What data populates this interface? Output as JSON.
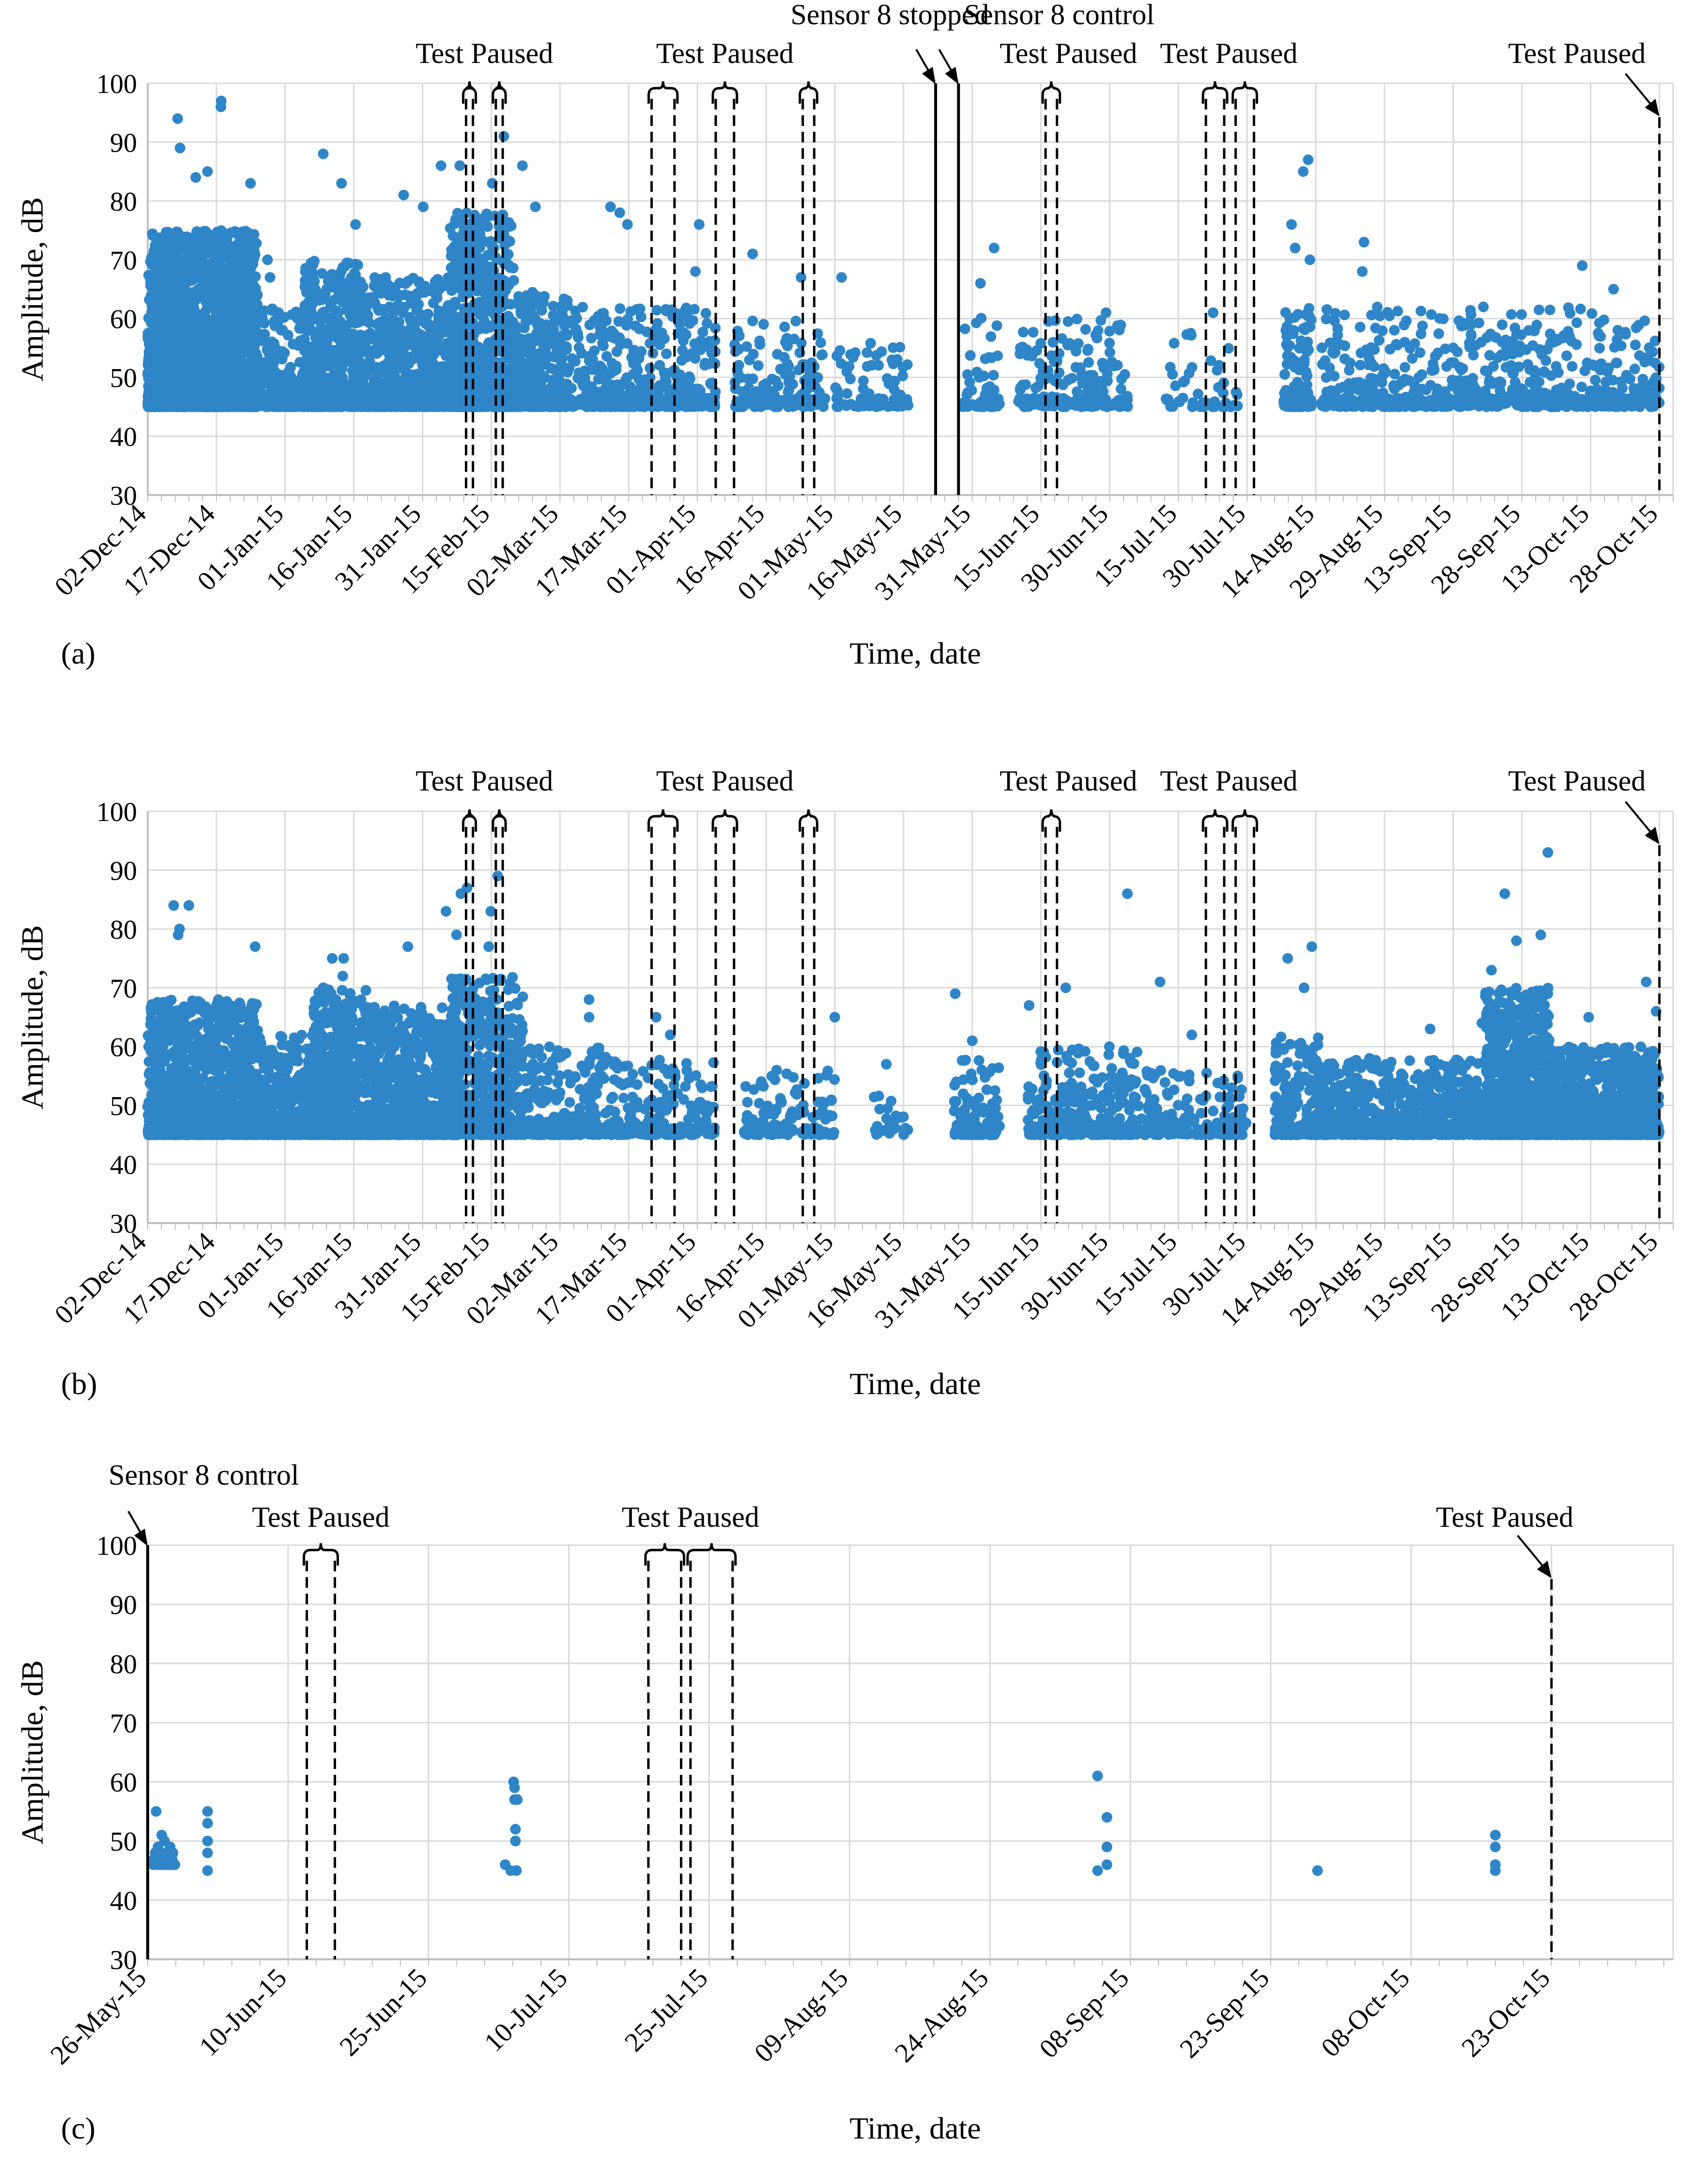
{
  "figure": {
    "description": "Amplitude vs. time scatter plots, three panels (a), (b), (c)"
  },
  "chart_data": [
    {
      "type": "scatter",
      "panel_label": "(a)",
      "xlabel": "Time, date",
      "ylabel": "Amplitude, dB",
      "ylim": [
        30,
        100
      ],
      "yticks": [
        30,
        40,
        50,
        60,
        70,
        80,
        90,
        100
      ],
      "xlim_days": [
        0,
        333
      ],
      "xticks": [
        {
          "day": 0,
          "label": "02-Dec-14"
        },
        {
          "day": 15,
          "label": "17-Dec-14"
        },
        {
          "day": 30,
          "label": "01-Jan-15"
        },
        {
          "day": 45,
          "label": "16-Jan-15"
        },
        {
          "day": 60,
          "label": "31-Jan-15"
        },
        {
          "day": 75,
          "label": "15-Feb-15"
        },
        {
          "day": 90,
          "label": "02-Mar-15"
        },
        {
          "day": 105,
          "label": "17-Mar-15"
        },
        {
          "day": 120,
          "label": "01-Apr-15"
        },
        {
          "day": 135,
          "label": "16-Apr-15"
        },
        {
          "day": 150,
          "label": "01-May-15"
        },
        {
          "day": 165,
          "label": "16-May-15"
        },
        {
          "day": 180,
          "label": "31-May-15"
        },
        {
          "day": 195,
          "label": "15-Jun-15"
        },
        {
          "day": 210,
          "label": "30-Jun-15"
        },
        {
          "day": 225,
          "label": "15-Jul-15"
        },
        {
          "day": 240,
          "label": "30-Jul-15"
        },
        {
          "day": 255,
          "label": "14-Aug-15"
        },
        {
          "day": 270,
          "label": "29-Aug-15"
        },
        {
          "day": 285,
          "label": "13-Sep-15"
        },
        {
          "day": 300,
          "label": "28-Sep-15"
        },
        {
          "day": 315,
          "label": "13-Oct-15"
        },
        {
          "day": 330,
          "label": "28-Oct-15"
        }
      ],
      "clusters": [
        {
          "start": 0,
          "end": 24,
          "density": 14,
          "min": 45,
          "max": 75,
          "outliers": [
            97,
            96,
            94,
            89,
            85,
            84,
            83
          ]
        },
        {
          "start": 24,
          "end": 34,
          "density": 3,
          "min": 45,
          "max": 62,
          "outliers": [
            70,
            67
          ]
        },
        {
          "start": 34,
          "end": 46,
          "density": 7,
          "min": 45,
          "max": 70,
          "outliers": [
            88,
            83,
            76
          ]
        },
        {
          "start": 46,
          "end": 66,
          "density": 5,
          "min": 45,
          "max": 67,
          "outliers": [
            81,
            79,
            86
          ]
        },
        {
          "start": 66,
          "end": 80,
          "density": 9,
          "min": 45,
          "max": 78,
          "outliers": [
            91,
            86,
            83
          ]
        },
        {
          "start": 80,
          "end": 92,
          "density": 4,
          "min": 45,
          "max": 65,
          "outliers": [
            86,
            79
          ]
        },
        {
          "start": 92,
          "end": 106,
          "density": 2,
          "min": 45,
          "max": 62,
          "outliers": [
            79,
            78,
            76
          ]
        },
        {
          "start": 106,
          "end": 124,
          "density": 2,
          "min": 45,
          "max": 62,
          "outliers": [
            76,
            68
          ]
        },
        {
          "start": 128,
          "end": 148,
          "density": 1,
          "min": 45,
          "max": 60,
          "outliers": [
            71,
            67
          ]
        },
        {
          "start": 150,
          "end": 166,
          "density": 0.6,
          "min": 45,
          "max": 56,
          "outliers": [
            67
          ]
        },
        {
          "start": 178,
          "end": 186,
          "density": 1,
          "min": 45,
          "max": 62,
          "outliers": [
            72,
            66
          ]
        },
        {
          "start": 190,
          "end": 214,
          "density": 1,
          "min": 45,
          "max": 60,
          "outliers": [
            61
          ]
        },
        {
          "start": 222,
          "end": 238,
          "density": 0.4,
          "min": 45,
          "max": 58,
          "outliers": [
            61
          ]
        },
        {
          "start": 248,
          "end": 254,
          "density": 3,
          "min": 45,
          "max": 62,
          "outliers": [
            87,
            85,
            76,
            72,
            70
          ]
        },
        {
          "start": 256,
          "end": 330,
          "density": 1.2,
          "min": 45,
          "max": 62,
          "outliers": [
            69,
            68,
            73,
            65
          ]
        }
      ],
      "control_lines": [
        {
          "day": 172,
          "style": "solid",
          "label": "Sensor 8 stopped"
        },
        {
          "day": 177,
          "style": "solid",
          "label": "Sensor 8 control"
        }
      ],
      "pause_brackets": [
        {
          "left": 69.5,
          "right": 71
        },
        {
          "left": 76,
          "right": 77.5
        },
        {
          "left": 110,
          "right": 115
        },
        {
          "left": 124,
          "right": 128
        },
        {
          "left": 143,
          "right": 145.5
        },
        {
          "left": 196,
          "right": 198.5
        },
        {
          "left": 231,
          "right": 235
        },
        {
          "left": 237.5,
          "right": 241.5
        }
      ],
      "end_pause_day": 330,
      "annotations": [
        {
          "text": "Test Paused",
          "near_day": 73.5
        },
        {
          "text": "Test Paused",
          "near_day": 126
        },
        {
          "text": "Sensor 8 stopped",
          "near_day": 162
        },
        {
          "text": "Sensor 8 control",
          "near_day": 199
        },
        {
          "text": "Test Paused",
          "near_day": 201
        },
        {
          "text": "Test Paused",
          "near_day": 236
        },
        {
          "text": "Test Paused",
          "near_day": 312
        }
      ]
    },
    {
      "type": "scatter",
      "panel_label": "(b)",
      "xlabel": "Time, date",
      "ylabel": "Amplitude, dB",
      "ylim": [
        30,
        100
      ],
      "yticks": [
        30,
        40,
        50,
        60,
        70,
        80,
        90,
        100
      ],
      "xlim_days": [
        0,
        333
      ],
      "xticks": [
        {
          "day": 0,
          "label": "02-Dec-14"
        },
        {
          "day": 15,
          "label": "17-Dec-14"
        },
        {
          "day": 30,
          "label": "01-Jan-15"
        },
        {
          "day": 45,
          "label": "16-Jan-15"
        },
        {
          "day": 60,
          "label": "31-Jan-15"
        },
        {
          "day": 75,
          "label": "15-Feb-15"
        },
        {
          "day": 90,
          "label": "02-Mar-15"
        },
        {
          "day": 105,
          "label": "17-Mar-15"
        },
        {
          "day": 120,
          "label": "01-Apr-15"
        },
        {
          "day": 135,
          "label": "16-Apr-15"
        },
        {
          "day": 150,
          "label": "01-May-15"
        },
        {
          "day": 165,
          "label": "16-May-15"
        },
        {
          "day": 180,
          "label": "31-May-15"
        },
        {
          "day": 195,
          "label": "15-Jun-15"
        },
        {
          "day": 210,
          "label": "30-Jun-15"
        },
        {
          "day": 225,
          "label": "15-Jul-15"
        },
        {
          "day": 240,
          "label": "30-Jul-15"
        },
        {
          "day": 255,
          "label": "14-Aug-15"
        },
        {
          "day": 270,
          "label": "29-Aug-15"
        },
        {
          "day": 285,
          "label": "13-Sep-15"
        },
        {
          "day": 300,
          "label": "28-Sep-15"
        },
        {
          "day": 315,
          "label": "13-Oct-15"
        },
        {
          "day": 330,
          "label": "28-Oct-15"
        }
      ],
      "clusters": [
        {
          "start": 0,
          "end": 24,
          "density": 8,
          "min": 45,
          "max": 68,
          "outliers": [
            84,
            84,
            80,
            79,
            77
          ]
        },
        {
          "start": 24,
          "end": 44,
          "density": 4,
          "min": 45,
          "max": 62,
          "outliers": [
            75,
            70
          ]
        },
        {
          "start": 36,
          "end": 50,
          "density": 7,
          "min": 45,
          "max": 70,
          "outliers": [
            75,
            72
          ]
        },
        {
          "start": 50,
          "end": 68,
          "density": 5,
          "min": 45,
          "max": 67,
          "outliers": [
            79,
            77,
            83
          ]
        },
        {
          "start": 66,
          "end": 82,
          "density": 5,
          "min": 45,
          "max": 72,
          "outliers": [
            89,
            87,
            86,
            83,
            77
          ]
        },
        {
          "start": 82,
          "end": 100,
          "density": 2,
          "min": 45,
          "max": 60,
          "outliers": [
            68,
            65
          ]
        },
        {
          "start": 100,
          "end": 124,
          "density": 1.2,
          "min": 45,
          "max": 58,
          "outliers": [
            65,
            62
          ]
        },
        {
          "start": 130,
          "end": 150,
          "density": 0.8,
          "min": 45,
          "max": 56,
          "outliers": [
            65
          ]
        },
        {
          "start": 158,
          "end": 166,
          "density": 0.4,
          "min": 45,
          "max": 52,
          "outliers": [
            57
          ]
        },
        {
          "start": 176,
          "end": 186,
          "density": 1.5,
          "min": 45,
          "max": 58,
          "outliers": [
            69,
            61
          ]
        },
        {
          "start": 192,
          "end": 216,
          "density": 2,
          "min": 45,
          "max": 60,
          "outliers": [
            86,
            70,
            67
          ]
        },
        {
          "start": 216,
          "end": 240,
          "density": 1,
          "min": 45,
          "max": 56,
          "outliers": [
            71,
            62
          ]
        },
        {
          "start": 246,
          "end": 256,
          "density": 3,
          "min": 45,
          "max": 62,
          "outliers": [
            77,
            75,
            70
          ]
        },
        {
          "start": 256,
          "end": 292,
          "density": 3,
          "min": 45,
          "max": 58,
          "outliers": [
            63,
            64
          ]
        },
        {
          "start": 292,
          "end": 306,
          "density": 8,
          "min": 45,
          "max": 70,
          "outliers": [
            93,
            86,
            79,
            78,
            73
          ]
        },
        {
          "start": 306,
          "end": 330,
          "density": 6,
          "min": 45,
          "max": 60,
          "outliers": [
            71,
            66,
            65
          ]
        }
      ],
      "control_lines": [],
      "pause_brackets": [
        {
          "left": 69.5,
          "right": 71
        },
        {
          "left": 76,
          "right": 77.5
        },
        {
          "left": 110,
          "right": 115
        },
        {
          "left": 124,
          "right": 128
        },
        {
          "left": 143,
          "right": 145.5
        },
        {
          "left": 196,
          "right": 198.5
        },
        {
          "left": 231,
          "right": 235
        },
        {
          "left": 237.5,
          "right": 241.5
        }
      ],
      "end_pause_day": 330,
      "annotations": [
        {
          "text": "Test Paused",
          "near_day": 73.5
        },
        {
          "text": "Test Paused",
          "near_day": 126
        },
        {
          "text": "Test Paused",
          "near_day": 201
        },
        {
          "text": "Test Paused",
          "near_day": 236
        },
        {
          "text": "Test Paused",
          "near_day": 312
        }
      ]
    },
    {
      "type": "scatter",
      "panel_label": "(c)",
      "xlabel": "Time, date",
      "ylabel": "Amplitude, dB",
      "ylim": [
        30,
        100
      ],
      "yticks": [
        30,
        40,
        50,
        60,
        70,
        80,
        90,
        100
      ],
      "xlim_days": [
        0,
        163
      ],
      "xticks": [
        {
          "day": 0,
          "label": "26-May-15"
        },
        {
          "day": 15,
          "label": "10-Jun-15"
        },
        {
          "day": 30,
          "label": "25-Jun-15"
        },
        {
          "day": 45,
          "label": "10-Jul-15"
        },
        {
          "day": 60,
          "label": "25-Jul-15"
        },
        {
          "day": 75,
          "label": "09-Aug-15"
        },
        {
          "day": 90,
          "label": "24-Aug-15"
        },
        {
          "day": 105,
          "label": "08-Sep-15"
        },
        {
          "day": 120,
          "label": "23-Sep-15"
        },
        {
          "day": 135,
          "label": "08-Oct-15"
        },
        {
          "day": 150,
          "label": "23-Oct-15"
        }
      ],
      "points": [
        {
          "x": 0.6,
          "y": 46
        },
        {
          "x": 0.7,
          "y": 47
        },
        {
          "x": 0.8,
          "y": 48
        },
        {
          "x": 0.9,
          "y": 55
        },
        {
          "x": 1.0,
          "y": 46
        },
        {
          "x": 1.1,
          "y": 49
        },
        {
          "x": 1.2,
          "y": 47
        },
        {
          "x": 1.3,
          "y": 46
        },
        {
          "x": 1.4,
          "y": 48
        },
        {
          "x": 1.5,
          "y": 51
        },
        {
          "x": 1.6,
          "y": 46
        },
        {
          "x": 1.7,
          "y": 47
        },
        {
          "x": 1.8,
          "y": 50
        },
        {
          "x": 1.9,
          "y": 46
        },
        {
          "x": 2.0,
          "y": 48
        },
        {
          "x": 2.1,
          "y": 46
        },
        {
          "x": 2.2,
          "y": 47
        },
        {
          "x": 2.3,
          "y": 46
        },
        {
          "x": 2.4,
          "y": 49
        },
        {
          "x": 2.5,
          "y": 46
        },
        {
          "x": 2.6,
          "y": 47
        },
        {
          "x": 2.7,
          "y": 48
        },
        {
          "x": 2.8,
          "y": 46
        },
        {
          "x": 2.9,
          "y": 46
        },
        {
          "x": 6.4,
          "y": 55
        },
        {
          "x": 6.4,
          "y": 53
        },
        {
          "x": 6.4,
          "y": 50
        },
        {
          "x": 6.4,
          "y": 48
        },
        {
          "x": 6.4,
          "y": 45
        },
        {
          "x": 38.2,
          "y": 46
        },
        {
          "x": 38.8,
          "y": 45
        },
        {
          "x": 39.1,
          "y": 60
        },
        {
          "x": 39.2,
          "y": 59
        },
        {
          "x": 39.2,
          "y": 57
        },
        {
          "x": 39.3,
          "y": 52
        },
        {
          "x": 39.3,
          "y": 50
        },
        {
          "x": 39.4,
          "y": 45
        },
        {
          "x": 39.5,
          "y": 57
        },
        {
          "x": 101.5,
          "y": 61
        },
        {
          "x": 101.5,
          "y": 45
        },
        {
          "x": 102.5,
          "y": 54
        },
        {
          "x": 102.5,
          "y": 49
        },
        {
          "x": 102.5,
          "y": 46
        },
        {
          "x": 125.0,
          "y": 45
        },
        {
          "x": 144.0,
          "y": 51
        },
        {
          "x": 144.0,
          "y": 49
        },
        {
          "x": 144.0,
          "y": 46
        },
        {
          "x": 144.0,
          "y": 45
        }
      ],
      "control_lines": [
        {
          "day": 0,
          "style": "solid",
          "label": "Sensor 8 control"
        }
      ],
      "pause_brackets": [
        {
          "left": 17,
          "right": 20
        },
        {
          "left": 53.5,
          "right": 57
        },
        {
          "left": 58,
          "right": 62.5
        }
      ],
      "end_pause_day": 150,
      "annotations": [
        {
          "text": "Sensor 8 control",
          "near_day": 6
        },
        {
          "text": "Test Paused",
          "near_day": 18.5
        },
        {
          "text": "Test Paused",
          "near_day": 58
        },
        {
          "text": "Test Paused",
          "near_day": 145
        }
      ]
    }
  ],
  "colors": {
    "marker": "#2E86C8",
    "grid": "#D9D9D9",
    "axis": "#BFBFBF",
    "annotation": "#000000"
  }
}
